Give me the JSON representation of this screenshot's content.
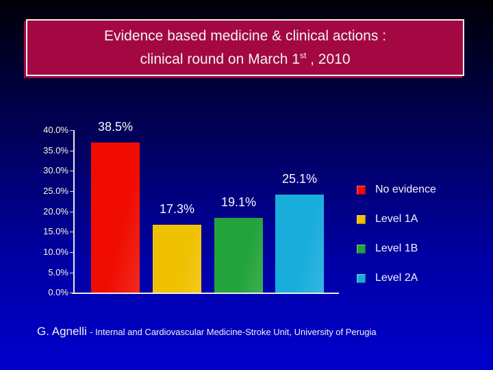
{
  "title": {
    "line1": "Evidence based medicine & clinical actions :",
    "line2_prefix": "clinical round on March 1",
    "line2_sup": "st",
    "line2_suffix": " , 2010"
  },
  "chart_data": {
    "type": "bar",
    "categories": [
      "No evidence",
      "Level 1A",
      "Level 1B",
      "Level 2A"
    ],
    "values": [
      38.5,
      17.3,
      19.1,
      25.1
    ],
    "value_labels": [
      "38.5%",
      "17.3%",
      "19.1%",
      "25.1%"
    ],
    "bar_colors": [
      "#f00c00",
      "#f0c100",
      "#22a33b",
      "#19addc"
    ],
    "title": "",
    "xlabel": "",
    "ylabel": "",
    "ylim": [
      0,
      40
    ],
    "ytick_labels": [
      "40.0%",
      "35.0%",
      "30.0%",
      "25.0%",
      "20.0%",
      "15.0%",
      "10.0%",
      "5.0%",
      "0.0%"
    ],
    "grid": false,
    "legend_position": "right"
  },
  "legend": {
    "items": [
      {
        "label": "No evidence",
        "color": "#f00c00"
      },
      {
        "label": "Level 1A",
        "color": "#f0c100"
      },
      {
        "label": "Level 1B",
        "color": "#22a33b"
      },
      {
        "label": "Level 2A",
        "color": "#19addc"
      }
    ]
  },
  "footer": {
    "author": "G. Agnelli",
    "affiliation": "- Internal and Cardiovascular Medicine-Stroke Unit, University of Perugia"
  },
  "colors": {
    "title_box_fill": "#a30842",
    "title_box_border": "#f4f4f4",
    "axis_label": "#fbfbd2",
    "axis_line": "#e9e9e9",
    "data_label": "#f8f8ff",
    "background_top": "#000006",
    "background_bottom": "#0000cd"
  }
}
